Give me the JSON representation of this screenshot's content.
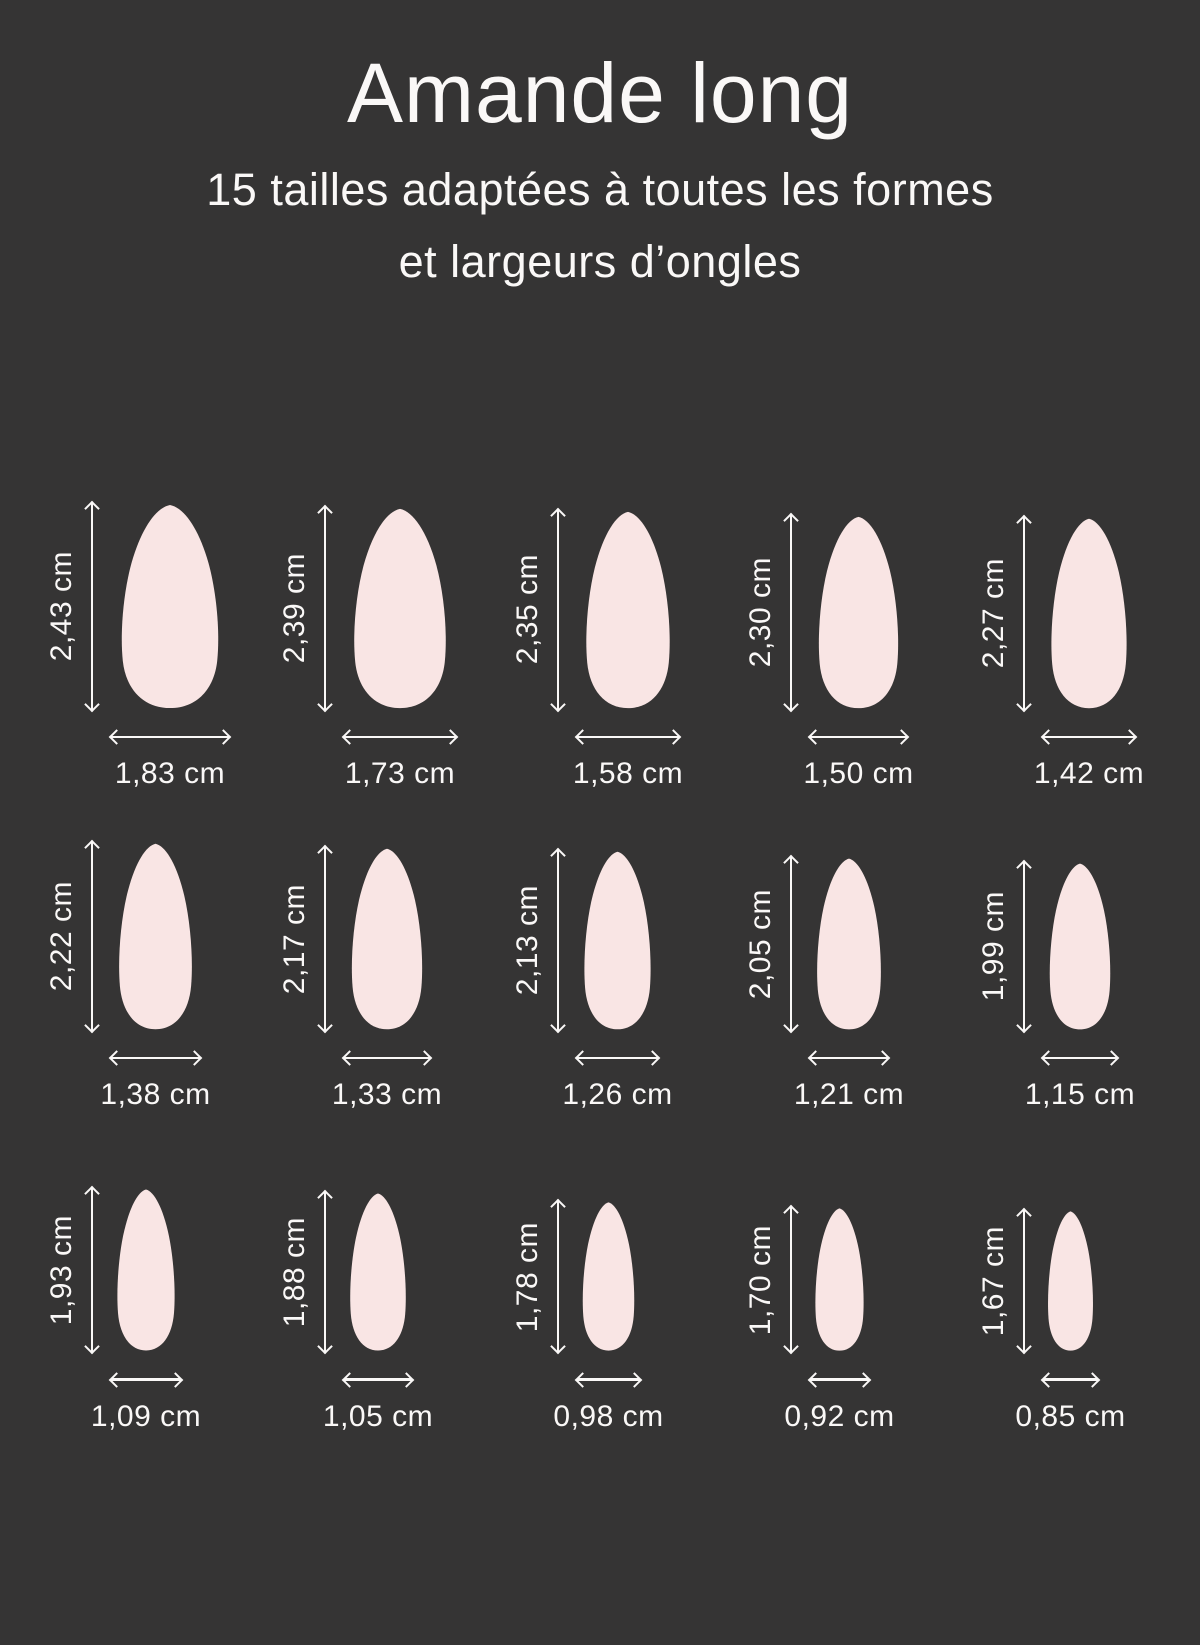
{
  "header": {
    "title": "Amande long",
    "subtitle_line1": "15 tailles adaptées à toutes les formes",
    "subtitle_line2": "et largeurs d’ongles"
  },
  "unit": "cm",
  "colors": {
    "background": "#353434",
    "nail": "#f9e5e4",
    "text": "#faf8f7"
  },
  "sizes": [
    {
      "row": 1,
      "height_cm": 2.43,
      "width_cm": 1.83,
      "height_label": "2,43 cm",
      "width_label": "1,83 cm"
    },
    {
      "row": 1,
      "height_cm": 2.39,
      "width_cm": 1.73,
      "height_label": "2,39 cm",
      "width_label": "1,73 cm"
    },
    {
      "row": 1,
      "height_cm": 2.35,
      "width_cm": 1.58,
      "height_label": "2,35 cm",
      "width_label": "1,58 cm"
    },
    {
      "row": 1,
      "height_cm": 2.3,
      "width_cm": 1.5,
      "height_label": "2,30 cm",
      "width_label": "1,50 cm"
    },
    {
      "row": 1,
      "height_cm": 2.27,
      "width_cm": 1.42,
      "height_label": "2,27 cm",
      "width_label": "1,42 cm"
    },
    {
      "row": 2,
      "height_cm": 2.22,
      "width_cm": 1.38,
      "height_label": "2,22 cm",
      "width_label": "1,38 cm"
    },
    {
      "row": 2,
      "height_cm": 2.17,
      "width_cm": 1.33,
      "height_label": "2,17 cm",
      "width_label": "1,33 cm"
    },
    {
      "row": 2,
      "height_cm": 2.13,
      "width_cm": 1.26,
      "height_label": "2,13 cm",
      "width_label": "1,26 cm"
    },
    {
      "row": 2,
      "height_cm": 2.05,
      "width_cm": 1.21,
      "height_label": "2,05 cm",
      "width_label": "1,21 cm"
    },
    {
      "row": 2,
      "height_cm": 1.99,
      "width_cm": 1.15,
      "height_label": "1,99 cm",
      "width_label": "1,15 cm"
    },
    {
      "row": 3,
      "height_cm": 1.93,
      "width_cm": 1.09,
      "height_label": "1,93 cm",
      "width_label": "1,09 cm"
    },
    {
      "row": 3,
      "height_cm": 1.88,
      "width_cm": 1.05,
      "height_label": "1,88 cm",
      "width_label": "1,05 cm"
    },
    {
      "row": 3,
      "height_cm": 1.78,
      "width_cm": 0.98,
      "height_label": "1,78 cm",
      "width_label": "0,98 cm"
    },
    {
      "row": 3,
      "height_cm": 1.7,
      "width_cm": 0.92,
      "height_label": "1,70 cm",
      "width_label": "0,92 cm"
    },
    {
      "row": 3,
      "height_cm": 1.67,
      "width_cm": 0.85,
      "height_label": "1,67 cm",
      "width_label": "0,85 cm"
    }
  ]
}
